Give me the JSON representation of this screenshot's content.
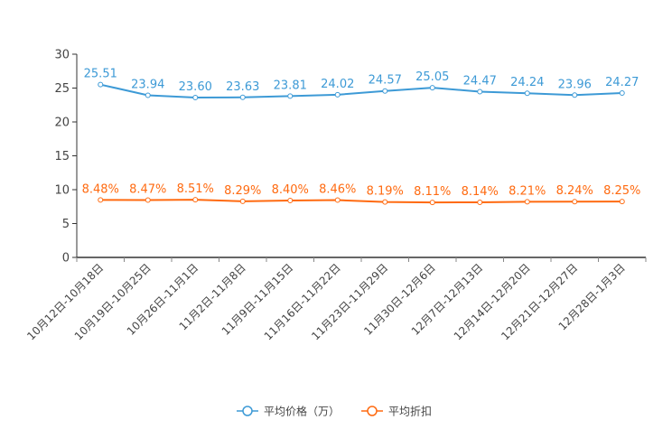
{
  "chart_data": {
    "type": "line",
    "title": "",
    "xlabel": "",
    "ylabel": "",
    "ylim": [
      0,
      30
    ],
    "yticks": [
      "0",
      "5",
      "10",
      "15",
      "20",
      "25",
      "30"
    ],
    "grid": false,
    "legend_position": "bottom-center",
    "categories": [
      "10月12日-10月18日",
      "10月19日-10月25日",
      "10月26日-11月1日",
      "11月2日-11月8日",
      "11月9日-11月15日",
      "11月16日-11月22日",
      "11月23日-11月29日",
      "11月30日-12月6日",
      "12月7日-12月13日",
      "12月14日-12月20日",
      "12月21日-12月27日",
      "12月28日-1月3日"
    ],
    "series": [
      {
        "name": "平均价格（万）",
        "color": "#3d9ad6",
        "values": [
          25.51,
          23.94,
          23.6,
          23.63,
          23.81,
          24.02,
          24.57,
          25.05,
          24.47,
          24.24,
          23.96,
          24.27
        ],
        "labels": [
          "25.51",
          "23.94",
          "23.60",
          "23.63",
          "23.81",
          "24.02",
          "24.57",
          "25.05",
          "24.47",
          "24.24",
          "23.96",
          "24.27"
        ]
      },
      {
        "name": "平均折扣",
        "color": "#ff6a10",
        "values": [
          8.48,
          8.47,
          8.51,
          8.29,
          8.4,
          8.46,
          8.19,
          8.11,
          8.14,
          8.21,
          8.24,
          8.25
        ],
        "labels": [
          "8.48%",
          "8.47%",
          "8.51%",
          "8.29%",
          "8.40%",
          "8.46%",
          "8.19%",
          "8.11%",
          "8.14%",
          "8.21%",
          "8.24%",
          "8.25%"
        ]
      }
    ]
  }
}
